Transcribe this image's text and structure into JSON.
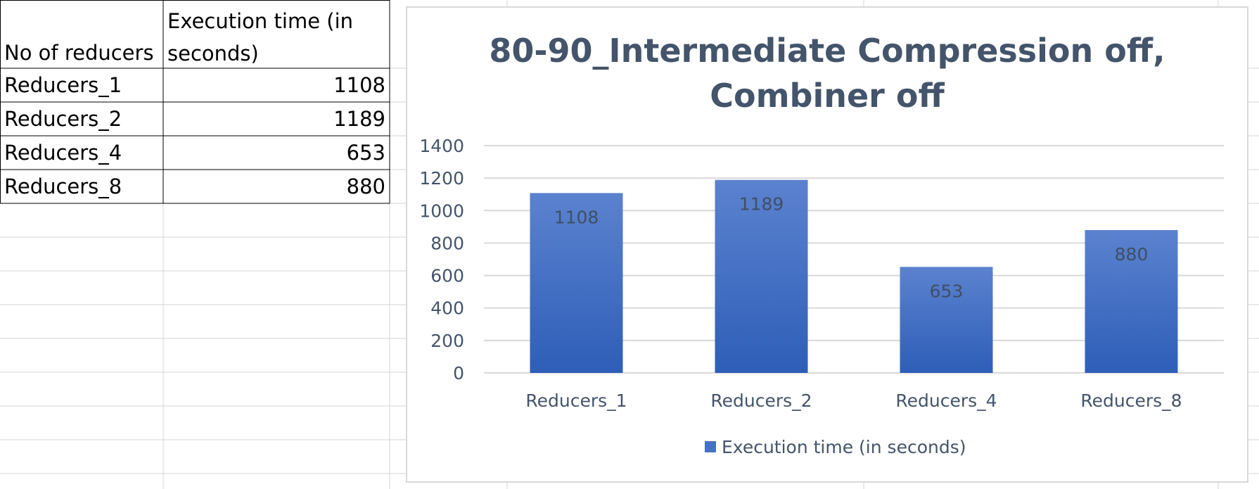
{
  "table": {
    "headers": [
      "No of reducers",
      "Execution time (in",
      "seconds)"
    ],
    "rows": [
      {
        "label": "Reducers_1",
        "value": "1108"
      },
      {
        "label": "Reducers_2",
        "value": "1189"
      },
      {
        "label": "Reducers_4",
        "value": "653"
      },
      {
        "label": "Reducers_8",
        "value": "880"
      }
    ]
  },
  "chart_data": {
    "type": "bar",
    "title_lines": [
      "80-90_Intermediate Compression off,",
      "Combiner off"
    ],
    "categories": [
      "Reducers_1",
      "Reducers_2",
      "Reducers_4",
      "Reducers_8"
    ],
    "series": [
      {
        "name": "Execution time (in seconds)",
        "values": [
          1108,
          1189,
          653,
          880
        ],
        "color": "#4472c4"
      }
    ],
    "ylim": [
      0,
      1400
    ],
    "yticks": [
      0,
      200,
      400,
      600,
      800,
      1000,
      1200,
      1400
    ],
    "grid": true,
    "data_labels": true,
    "legend_position": "bottom"
  }
}
